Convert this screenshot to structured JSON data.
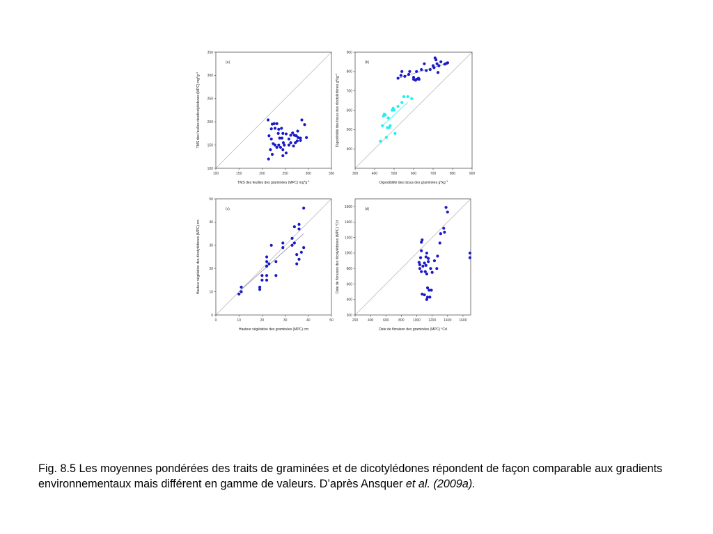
{
  "caption": {
    "text": "Fig. 8.5 Les moyennes pondérées des traits de graminées et de dicotylédones répondent de façon comparable aux gradients environnementaux mais différent en gamme de valeurs. D’après Ansquer ",
    "italic": "et al. (2009a)."
  },
  "colors": {
    "series_dark": "#1a1ac8",
    "series_light": "#22f0f0",
    "frame": "#555555",
    "diagonal": "#b8b8b8",
    "regression": "#8a8aa0"
  },
  "chart_data": [
    {
      "type": "scatter",
      "panel": "(a)",
      "xlabel": "TMS des feuilles des graminées (MPC) mg*g",
      "xlabel_sup": "-1",
      "ylabel": "TMS des feuilles desdicotylédones (MPC) mg*g",
      "ylabel_sup": "-1",
      "xlim": [
        100,
        350
      ],
      "ylim": [
        100,
        350
      ],
      "xticks": [
        "100",
        "150",
        "200",
        "250",
        "300",
        "350"
      ],
      "yticks": [
        "100",
        "150",
        "200",
        "250",
        "300",
        "350"
      ],
      "diagonal": true,
      "series": [
        {
          "color": "dark",
          "points": [
            [
              213,
              204
            ],
            [
              220,
              185
            ],
            [
              222,
              195
            ],
            [
              226,
              196
            ],
            [
              228,
              186
            ],
            [
              232,
              196
            ],
            [
              236,
              184
            ],
            [
              242,
              186
            ],
            [
              245,
              175
            ],
            [
              215,
              170
            ],
            [
              220,
              163
            ],
            [
              224,
              153
            ],
            [
              235,
              175
            ],
            [
              238,
              165
            ],
            [
              243,
              165
            ],
            [
              246,
              155
            ],
            [
              252,
              174
            ],
            [
              258,
              163
            ],
            [
              262,
              171
            ],
            [
              266,
              176
            ],
            [
              270,
              171
            ],
            [
              274,
              170
            ],
            [
              278,
              166
            ],
            [
              283,
              165
            ],
            [
              286,
              204
            ],
            [
              292,
              194
            ],
            [
              296,
              166
            ],
            [
              218,
              140
            ],
            [
              222,
              130
            ],
            [
              228,
              150
            ],
            [
              232,
              145
            ],
            [
              236,
              150
            ],
            [
              240,
              145
            ],
            [
              245,
              140
            ],
            [
              248,
              150
            ],
            [
              252,
              133
            ],
            [
              258,
              150
            ],
            [
              262,
              155
            ],
            [
              268,
              148
            ],
            [
              272,
              155
            ],
            [
              276,
              159
            ],
            [
              283,
              160
            ],
            [
              214,
              120
            ],
            [
              245,
              127
            ],
            [
              277,
              180
            ]
          ]
        }
      ]
    },
    {
      "type": "scatter",
      "panel": "(b)",
      "xlabel": "Digestibilité des tissus des graminées g*kg",
      "xlabel_sup": "-1",
      "ylabel": "Digestibilité des tissus des dicotylédones g*kg",
      "ylabel_sup": "-1",
      "xlim": [
        300,
        900
      ],
      "ylim": [
        300,
        900
      ],
      "xticks": [
        "300",
        "400",
        "500",
        "600",
        "700",
        "800",
        "900"
      ],
      "yticks": [
        "400",
        "500",
        "600",
        "700",
        "800",
        "900"
      ],
      "diagonal": true,
      "regression": [
        {
          "color": "dark",
          "from": [
            520,
            765
          ],
          "to": [
            780,
            845
          ]
        },
        {
          "color": "light",
          "from": [
            440,
            520
          ],
          "to": [
            570,
            640
          ]
        }
      ],
      "series": [
        {
          "color": "dark",
          "points": [
            [
              520,
              765
            ],
            [
              535,
              780
            ],
            [
              540,
              800
            ],
            [
              555,
              775
            ],
            [
              575,
              785
            ],
            [
              580,
              800
            ],
            [
              600,
              770
            ],
            [
              610,
              755
            ],
            [
              615,
              800
            ],
            [
              625,
              765
            ],
            [
              628,
              760
            ],
            [
              640,
              810
            ],
            [
              655,
              840
            ],
            [
              665,
              805
            ],
            [
              685,
              810
            ],
            [
              700,
              830
            ],
            [
              705,
              820
            ],
            [
              710,
              870
            ],
            [
              715,
              860
            ],
            [
              725,
              795
            ],
            [
              730,
              830
            ],
            [
              740,
              850
            ],
            [
              760,
              838
            ],
            [
              770,
              843
            ],
            [
              775,
              845
            ],
            [
              720,
              840
            ],
            [
              600,
              760
            ],
            [
              615,
              760
            ]
          ]
        },
        {
          "color": "light",
          "points": [
            [
              430,
              440
            ],
            [
              440,
              520
            ],
            [
              445,
              570
            ],
            [
              450,
              580
            ],
            [
              455,
              575
            ],
            [
              460,
              460
            ],
            [
              465,
              510
            ],
            [
              470,
              560
            ],
            [
              475,
              510
            ],
            [
              480,
              520
            ],
            [
              490,
              600
            ],
            [
              495,
              610
            ],
            [
              500,
              600
            ],
            [
              505,
              480
            ],
            [
              520,
              620
            ],
            [
              540,
              640
            ],
            [
              550,
              670
            ],
            [
              570,
              670
            ],
            [
              590,
              660
            ]
          ]
        }
      ]
    },
    {
      "type": "scatter",
      "panel": "(c)",
      "xlabel": "Hauteur végétative des graminées (MPC) cm",
      "ylabel": "Hauteur végétative des dicotylédones (MPC) cm",
      "xlim": [
        0,
        50
      ],
      "ylim": [
        0,
        50
      ],
      "xticks": [
        "0",
        "10",
        "20",
        "30",
        "40",
        "50"
      ],
      "yticks": [
        "0",
        "10",
        "20",
        "30",
        "40",
        "50"
      ],
      "diagonal": true,
      "regression": [
        {
          "color": "dark",
          "from": [
            10,
            10
          ],
          "to": [
            38,
            35
          ]
        }
      ],
      "series": [
        {
          "color": "dark",
          "points": [
            [
              10,
              9
            ],
            [
              11,
              12
            ],
            [
              11,
              10
            ],
            [
              19,
              11
            ],
            [
              19,
              12
            ],
            [
              20,
              15
            ],
            [
              20,
              17
            ],
            [
              22,
              15
            ],
            [
              22,
              17
            ],
            [
              22,
              21
            ],
            [
              22,
              23
            ],
            [
              23,
              22
            ],
            [
              22,
              25
            ],
            [
              24,
              30
            ],
            [
              26,
              23
            ],
            [
              26,
              17
            ],
            [
              29,
              29
            ],
            [
              29,
              31
            ],
            [
              33,
              30
            ],
            [
              33,
              33
            ],
            [
              34,
              31
            ],
            [
              34,
              38
            ],
            [
              35,
              26
            ],
            [
              35,
              22
            ],
            [
              36,
              39
            ],
            [
              36,
              37
            ],
            [
              36,
              24
            ],
            [
              37,
              27
            ],
            [
              38,
              29
            ],
            [
              38,
              46
            ]
          ]
        }
      ]
    },
    {
      "type": "scatter",
      "panel": "(d)",
      "xlabel": "Date de floraison des graminées (MPC) °Cd",
      "ylabel": "Date de floraison des dicotylédones (MPC) °Cd",
      "xlim": [
        200,
        1700
      ],
      "ylim": [
        200,
        1700
      ],
      "xticks": [
        "200",
        "400",
        "600",
        "800",
        "1000",
        "1200",
        "1400",
        "1600"
      ],
      "yticks": [
        "200",
        "400",
        "600",
        "800",
        "1000",
        "1200",
        "1400",
        "1600"
      ],
      "diagonal": true,
      "series": [
        {
          "color": "dark",
          "points": [
            [
              1030,
              880
            ],
            [
              1040,
              850
            ],
            [
              1040,
              800
            ],
            [
              1050,
              940
            ],
            [
              1060,
              1030
            ],
            [
              1060,
              1140
            ],
            [
              1070,
              1170
            ],
            [
              1060,
              760
            ],
            [
              1070,
              470
            ],
            [
              1080,
              830
            ],
            [
              1100,
              870
            ],
            [
              1110,
              760
            ],
            [
              1100,
              460
            ],
            [
              1120,
              950
            ],
            [
              1120,
              840
            ],
            [
              1130,
              730
            ],
            [
              1130,
              400
            ],
            [
              1140,
              550
            ],
            [
              1150,
              890
            ],
            [
              1150,
              930
            ],
            [
              1140,
              430
            ],
            [
              1160,
              520
            ],
            [
              1170,
              430
            ],
            [
              1180,
              800
            ],
            [
              1190,
              520
            ],
            [
              1200,
              750
            ],
            [
              1230,
              900
            ],
            [
              1260,
              800
            ],
            [
              1270,
              960
            ],
            [
              1300,
              1130
            ],
            [
              1310,
              1250
            ],
            [
              1350,
              1320
            ],
            [
              1360,
              1270
            ],
            [
              1380,
              1590
            ],
            [
              1400,
              1530
            ],
            [
              1690,
              1000
            ],
            [
              1690,
              940
            ],
            [
              1130,
              1000
            ]
          ]
        }
      ]
    }
  ]
}
